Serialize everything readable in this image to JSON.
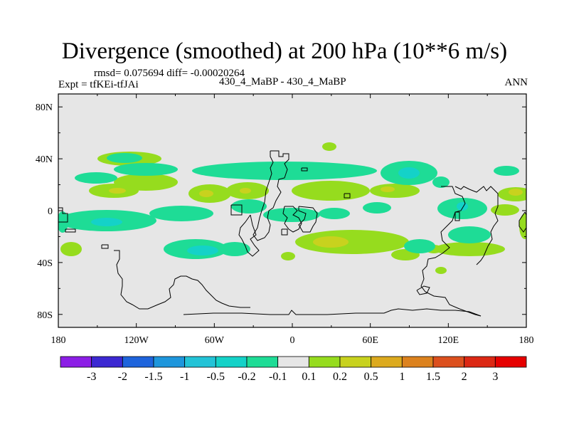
{
  "title": "Divergence (smoothed) at 200 hPa (10**6 m/s)",
  "stats_line": "rmsd= 0.075694 diff= -0.00020264",
  "experiment_line": "Expt = tfKEi-tfJAi",
  "case_line": "430_4_MaBP - 430_4_MaBP",
  "season": "ANN",
  "chart_data": {
    "type": "map",
    "projection": "cylindrical-equidistant",
    "lon_range": [
      -180,
      180
    ],
    "lat_range": [
      -90,
      90
    ],
    "x_tick_labels": [
      "180",
      "120W",
      "60W",
      "0",
      "60E",
      "120E",
      "180"
    ],
    "y_tick_labels": [
      "80N",
      "40N",
      "0",
      "40S",
      "80S"
    ],
    "colorbar": {
      "levels": [
        "-3",
        "-2",
        "-1.5",
        "-1",
        "-0.5",
        "-0.2",
        "-0.1",
        "0.1",
        "0.2",
        "0.5",
        "1",
        "1.5",
        "2",
        "3"
      ],
      "colors": [
        "#8c1ee6",
        "#3c28d2",
        "#1e64dc",
        "#1e96dc",
        "#23c3d7",
        "#14d2c8",
        "#1edc96",
        "#e6e6e6",
        "#96dc1e",
        "#c8d21e",
        "#dcaa1e",
        "#dc821e",
        "#dc501e",
        "#dc2814",
        "#e60000"
      ]
    },
    "background_color": "#e6e6e6"
  }
}
